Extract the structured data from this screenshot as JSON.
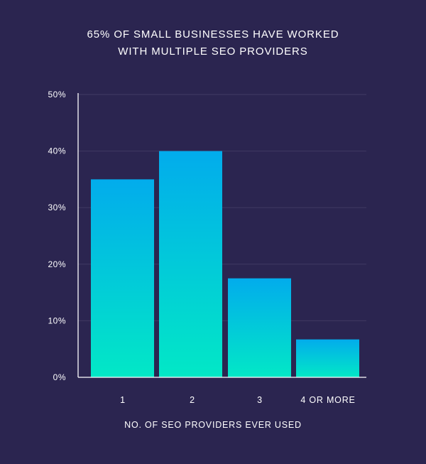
{
  "colors": {
    "background": "#2b2550",
    "gridline": "#403a63",
    "axis": "#ffffff",
    "bar_top": "#02acec",
    "bar_bottom": "#02e8c6",
    "text": "#ffffff"
  },
  "chart_data": {
    "type": "bar",
    "title_lines": [
      "65% OF SMALL BUSINESSES HAVE WORKED",
      "WITH MULTIPLE SEO PROVIDERS"
    ],
    "categories": [
      "1",
      "2",
      "3",
      "4 OR MORE"
    ],
    "values": [
      35,
      40,
      17.5,
      6.7
    ],
    "value_unit": "%",
    "xlabel": "NO. OF SEO PROVIDERS EVER USED",
    "ylabel": "",
    "ylim": [
      0,
      50
    ],
    "yticks": [
      0,
      10,
      20,
      30,
      40,
      50
    ],
    "ytick_labels": [
      "0%",
      "10%",
      "20%",
      "30%",
      "40%",
      "50%"
    ],
    "grid": true,
    "legend": "none"
  }
}
